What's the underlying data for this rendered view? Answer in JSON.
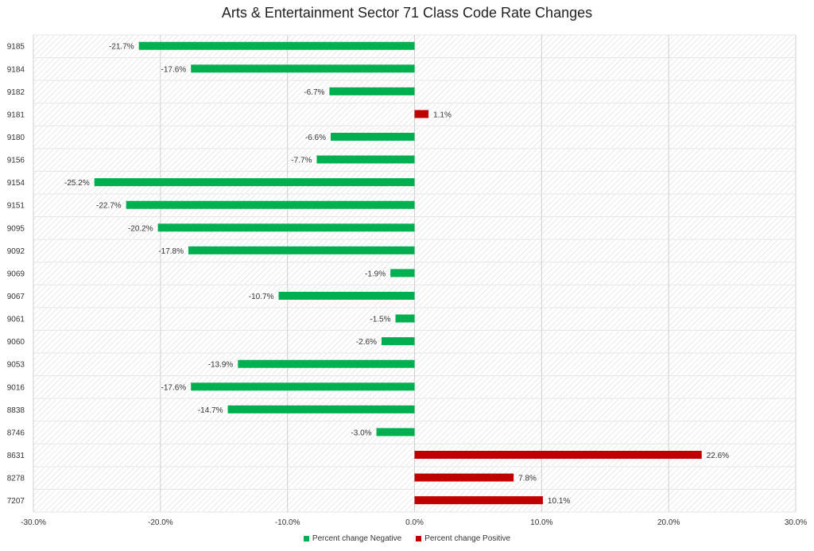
{
  "chart_data": {
    "type": "bar",
    "orientation": "horizontal",
    "title": "Arts & Entertainment Sector 71 Class Code Rate Changes",
    "categories": [
      "9185",
      "9184",
      "9182",
      "9181",
      "9180",
      "9156",
      "9154",
      "9151",
      "9095",
      "9092",
      "9069",
      "9067",
      "9061",
      "9060",
      "9053",
      "9016",
      "8838",
      "8746",
      "8631",
      "8278",
      "7207"
    ],
    "values": [
      -21.7,
      -17.6,
      -6.7,
      1.1,
      -6.6,
      -7.7,
      -25.2,
      -22.7,
      -20.2,
      -17.8,
      -1.9,
      -10.7,
      -1.5,
      -2.6,
      -13.9,
      -17.6,
      -14.7,
      -3.0,
      22.6,
      7.8,
      10.1
    ],
    "value_labels": [
      "-21.7%",
      "-17.6%",
      "-6.7%",
      "1.1%",
      "-6.6%",
      "-7.7%",
      "-25.2%",
      "-22.7%",
      "-20.2%",
      "-17.8%",
      "-1.9%",
      "-10.7%",
      "-1.5%",
      "-2.6%",
      "-13.9%",
      "-17.6%",
      "-14.7%",
      "-3.0%",
      "22.6%",
      "7.8%",
      "10.1%"
    ],
    "xlim": [
      -30,
      30
    ],
    "x_ticks": [
      -30,
      -20,
      -10,
      0,
      10,
      20,
      30
    ],
    "x_tick_labels": [
      "-30.0%",
      "-20.0%",
      "-10.0%",
      "0.0%",
      "10.0%",
      "20.0%",
      "30.0%"
    ],
    "grid": true,
    "legend_position": "bottom",
    "series": [
      {
        "name": "Percent change Negative",
        "color": "#00b050"
      },
      {
        "name": "Percent change Positive",
        "color": "#c00000"
      }
    ]
  }
}
